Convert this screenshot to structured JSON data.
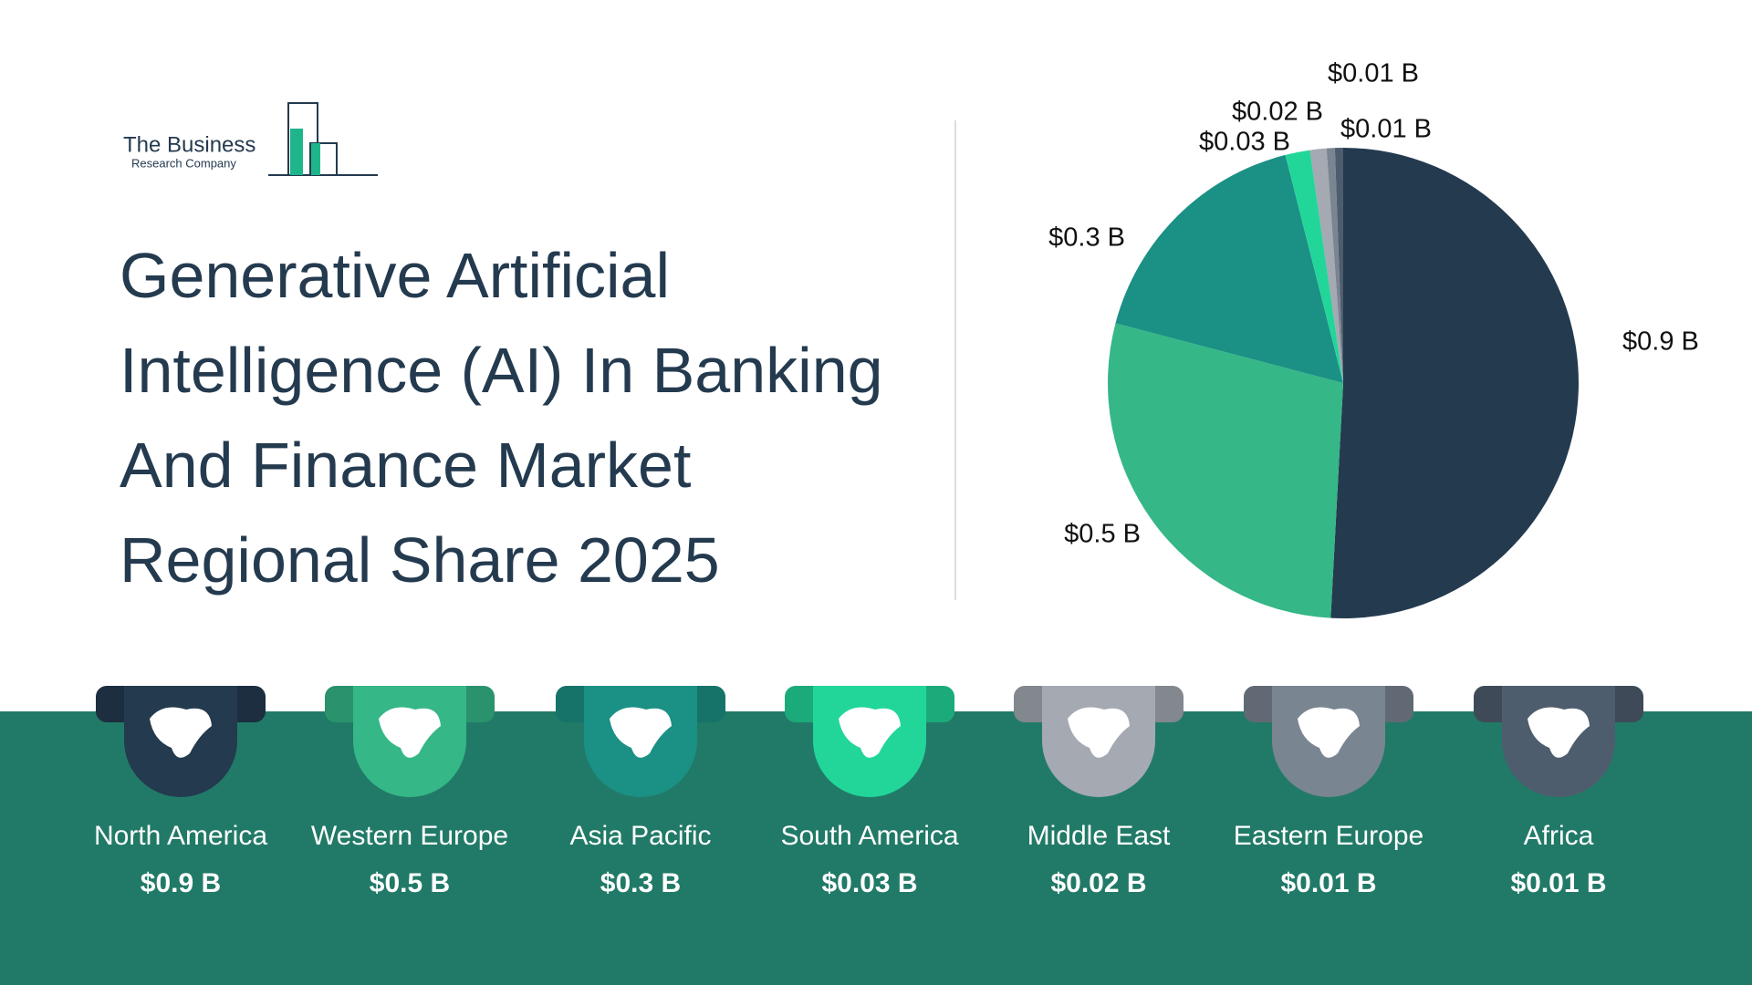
{
  "logo": {
    "name": "The Business",
    "subtitle": "Research Company"
  },
  "chart_data": {
    "type": "pie",
    "title": "Generative Artificial Intelligence (AI) In Banking And Finance Market Regional Share 2025",
    "categories": [
      "North America",
      "Western Europe",
      "Asia Pacific",
      "South America",
      "Middle East",
      "Eastern Europe",
      "Africa"
    ],
    "values": [
      0.9,
      0.5,
      0.3,
      0.03,
      0.02,
      0.01,
      0.01
    ],
    "value_labels": [
      "$0.9 B",
      "$0.5 B",
      "$0.3 B",
      "$0.03 B",
      "$0.02 B",
      "$0.01 B",
      "$0.01 B"
    ],
    "colors": [
      "#243a4f",
      "#35b787",
      "#1b9084",
      "#22d69a",
      "#a4a9b2",
      "#7a8592",
      "#4e5d6e"
    ]
  }
}
